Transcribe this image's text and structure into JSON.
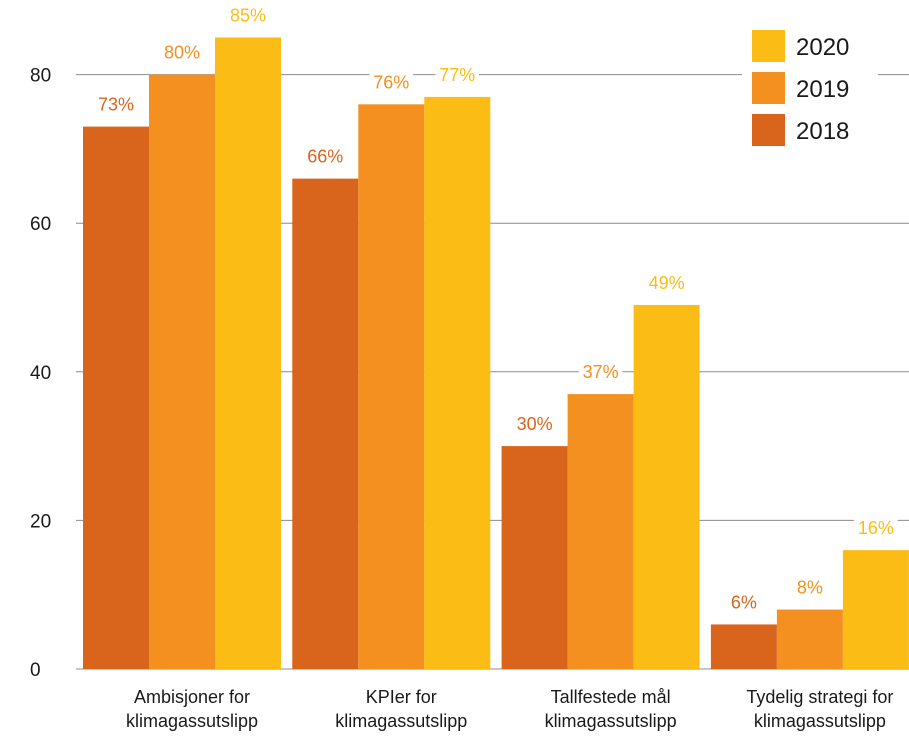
{
  "chart_data": {
    "type": "bar",
    "categories": [
      [
        "Ambisjoner for",
        "klimagassutslipp"
      ],
      [
        "KPIer for",
        "klimagassutslipp"
      ],
      [
        "Tallfestede mål",
        "klimagassutslipp"
      ],
      [
        "Tydelig strategi for",
        "klimagassutslipp"
      ]
    ],
    "series": [
      {
        "name": "2018",
        "color": "#D9651D",
        "values": [
          73,
          66,
          30,
          6
        ],
        "labels": [
          "73%",
          "66%",
          "30%",
          "6%"
        ]
      },
      {
        "name": "2019",
        "color": "#F39020",
        "values": [
          80,
          76,
          37,
          8
        ],
        "labels": [
          "80%",
          "76%",
          "37%",
          "8%"
        ]
      },
      {
        "name": "2020",
        "color": "#FBBC15",
        "values": [
          85,
          77,
          49,
          16
        ],
        "labels": [
          "85%",
          "77%",
          "49%",
          "16%"
        ]
      }
    ],
    "legend_order": [
      "2020",
      "2019",
      "2018"
    ],
    "y_ticks": [
      "0",
      "20",
      "40",
      "60",
      "80"
    ],
    "ylim": [
      0,
      90
    ],
    "grid": true,
    "legend_position": "top-right",
    "title": "",
    "xlabel": "",
    "ylabel": ""
  }
}
